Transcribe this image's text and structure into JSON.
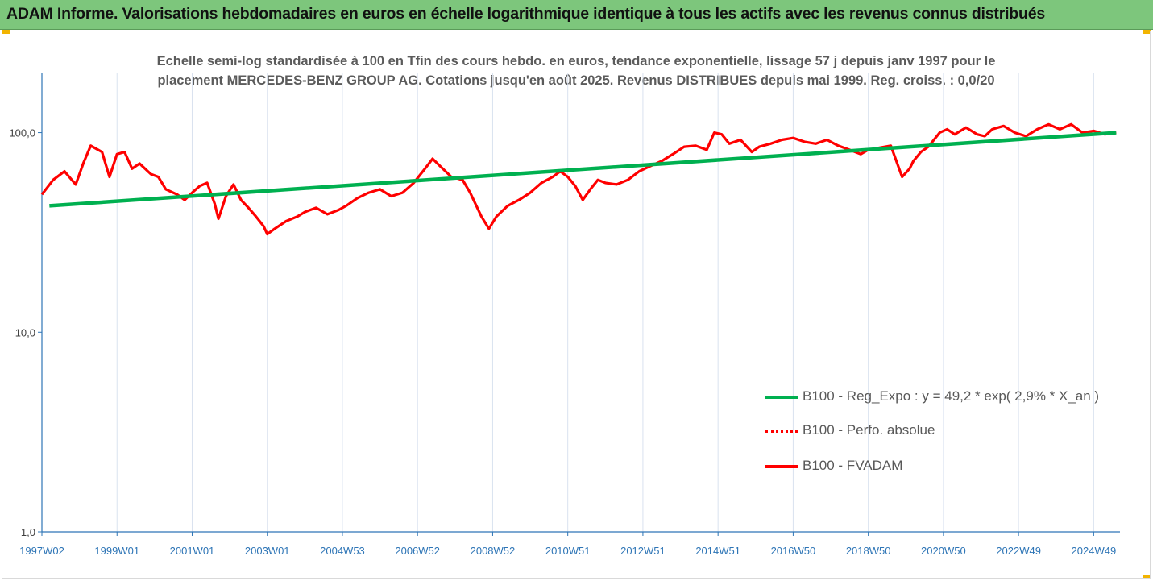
{
  "banner": {
    "title": "ADAM Informe. Valorisations hebdomadaires en euros en échelle logarithmique identique à tous les actifs avec les revenus connus distribués"
  },
  "colors": {
    "banner_bg": "#7dc67c",
    "accent_corner": "#f2b400",
    "trend": "#00b050",
    "perf": "#ff0000",
    "fvadam": "#ff0000",
    "axis": "#2e75b6",
    "grid": "#d9e2ef"
  },
  "chart_data": {
    "type": "line",
    "title_line1": "Echelle semi-log standardisée à 100 en Tfin des cours hebdo. en euros, tendance exponentielle, lissage 57 j depuis janv 1997 pour le",
    "title_line2": "placement MERCEDES-BENZ GROUP AG. Cotations jusqu'en août 2025. Revenus DISTRIBUES depuis mai 1999. Reg. croiss. : 0,0/20",
    "y_scale": "log",
    "ylim": [
      1,
      200
    ],
    "xlim": [
      1997.0,
      2025.7
    ],
    "grid": "vertical",
    "legend_position": "bottom-right",
    "y_ticks": [
      {
        "value": 1,
        "label": "1,0"
      },
      {
        "value": 10,
        "label": "10,0"
      },
      {
        "value": 100,
        "label": "100,0"
      }
    ],
    "x_ticks": [
      {
        "x": 1997.0,
        "label": "1997W02"
      },
      {
        "x": 1999.0,
        "label": "1999W01"
      },
      {
        "x": 2001.0,
        "label": "2001W01"
      },
      {
        "x": 2003.0,
        "label": "2003W01"
      },
      {
        "x": 2005.0,
        "label": "2004W53"
      },
      {
        "x": 2007.0,
        "label": "2006W52"
      },
      {
        "x": 2009.0,
        "label": "2008W52"
      },
      {
        "x": 2011.0,
        "label": "2010W51"
      },
      {
        "x": 2013.0,
        "label": "2012W51"
      },
      {
        "x": 2015.0,
        "label": "2014W51"
      },
      {
        "x": 2017.0,
        "label": "2016W50"
      },
      {
        "x": 2019.0,
        "label": "2018W50"
      },
      {
        "x": 2021.0,
        "label": "2020W50"
      },
      {
        "x": 2023.0,
        "label": "2022W49"
      },
      {
        "x": 2025.0,
        "label": "2024W49"
      }
    ],
    "series": [
      {
        "name": "B100 - Reg_Expo : y = 49,2 * exp( 2,9% *  X_an )",
        "style": "solid-green",
        "x": [
          1997.2,
          2025.6
        ],
        "y": [
          43.0,
          100.0
        ]
      },
      {
        "name": "B100 - Perfo. absolue",
        "style": "dotted-red",
        "x": [],
        "y": []
      },
      {
        "name": "B100 - FVADAM",
        "style": "solid-red",
        "x": [
          1997.0,
          1997.3,
          1997.6,
          1997.9,
          1998.1,
          1998.3,
          1998.6,
          1998.8,
          1999.0,
          1999.2,
          1999.4,
          1999.6,
          1999.9,
          2000.1,
          2000.3,
          2000.6,
          2000.8,
          2001.0,
          2001.2,
          2001.4,
          2001.6,
          2001.7,
          2001.9,
          2002.1,
          2002.3,
          2002.5,
          2002.7,
          2002.9,
          2003.0,
          2003.2,
          2003.5,
          2003.8,
          2004.0,
          2004.3,
          2004.6,
          2004.9,
          2005.1,
          2005.4,
          2005.7,
          2006.0,
          2006.3,
          2006.6,
          2006.9,
          2007.2,
          2007.4,
          2007.6,
          2007.9,
          2008.2,
          2008.4,
          2008.7,
          2008.9,
          2009.1,
          2009.4,
          2009.7,
          2010.0,
          2010.3,
          2010.6,
          2010.8,
          2011.0,
          2011.2,
          2011.4,
          2011.6,
          2011.8,
          2012.0,
          2012.3,
          2012.6,
          2012.9,
          2013.2,
          2013.5,
          2013.8,
          2014.1,
          2014.4,
          2014.7,
          2014.9,
          2015.1,
          2015.3,
          2015.6,
          2015.9,
          2016.1,
          2016.4,
          2016.7,
          2017.0,
          2017.3,
          2017.6,
          2017.9,
          2018.2,
          2018.5,
          2018.8,
          2019.0,
          2019.3,
          2019.6,
          2019.9,
          2020.1,
          2020.2,
          2020.4,
          2020.6,
          2020.9,
          2021.1,
          2021.3,
          2021.6,
          2021.9,
          2022.1,
          2022.3,
          2022.6,
          2022.9,
          2023.2,
          2023.5,
          2023.8,
          2024.1,
          2024.4,
          2024.7,
          2025.0,
          2025.3,
          2025.6
        ],
        "y": [
          49,
          58,
          64,
          55,
          70,
          86,
          80,
          60,
          78,
          80,
          66,
          70,
          62,
          60,
          52,
          49,
          46,
          50,
          54,
          56,
          44,
          37,
          48,
          55,
          46,
          42,
          38,
          34,
          31,
          33,
          36,
          38,
          40,
          42,
          39,
          41,
          43,
          47,
          50,
          52,
          48,
          50,
          56,
          66,
          74,
          68,
          60,
          58,
          50,
          38,
          33,
          38,
          43,
          46,
          50,
          56,
          60,
          64,
          60,
          54,
          46,
          52,
          58,
          56,
          55,
          58,
          64,
          68,
          72,
          78,
          85,
          86,
          82,
          100,
          98,
          88,
          92,
          80,
          85,
          88,
          92,
          94,
          90,
          88,
          92,
          86,
          82,
          78,
          82,
          84,
          86,
          60,
          66,
          72,
          80,
          85,
          100,
          104,
          98,
          106,
          98,
          96,
          104,
          108,
          100,
          96,
          104,
          110,
          104,
          110,
          100,
          102,
          98,
          100
        ]
      }
    ]
  }
}
